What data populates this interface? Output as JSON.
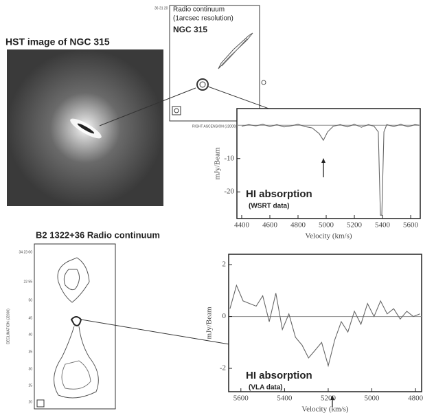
{
  "panels": {
    "hst": {
      "title": "HST image of NGC 315"
    },
    "radio": {
      "lines": [
        "Radio continuum",
        "(1arcsec resolution)"
      ],
      "name": "NGC 315",
      "ytick": "36 31 20",
      "xlabel": "RIGHT ASCENSION (J2000)"
    },
    "b2": {
      "title": "B2 1322+36 Radio continuum",
      "ylabel": "DECLINATION (J2000)",
      "yticks": [
        "34 23 00",
        "22 55",
        "50",
        "45",
        "40",
        "35",
        "30",
        "25",
        "20"
      ]
    }
  },
  "chart_data": [
    {
      "type": "line",
      "color": "#666666",
      "xlabel": "Velocity (km/s)",
      "ylabel": "mJy/Beam",
      "annotations": [
        "HI absorption",
        "(WSRT data)"
      ],
      "x": [
        4400,
        4450,
        4500,
        4550,
        4600,
        4650,
        4700,
        4750,
        4800,
        4850,
        4900,
        4950,
        4980,
        5010,
        5050,
        5100,
        5150,
        5200,
        5250,
        5300,
        5340,
        5370,
        5385,
        5395,
        5410,
        5430,
        5480,
        5530,
        5580,
        5630,
        5660
      ],
      "values": [
        -0.3,
        0.2,
        -0.2,
        0.3,
        -0.4,
        0.2,
        -0.5,
        -0.2,
        0.3,
        -0.4,
        -0.8,
        -2.5,
        -4.5,
        -2.0,
        -0.3,
        0.2,
        -0.5,
        0.3,
        -0.6,
        0.2,
        -0.3,
        -2,
        -27,
        -27,
        -2,
        0.2,
        -0.4,
        0.3,
        -0.5,
        0.2,
        0.0
      ],
      "xlim": [
        4366,
        5668
      ],
      "xticks": [
        4400,
        4600,
        4800,
        5000,
        5200,
        5400,
        5600
      ],
      "ylim": [
        -28,
        5
      ],
      "yticks": [
        -10,
        -20
      ]
    },
    {
      "type": "line",
      "color": "#666666",
      "xlabel": "Velocity (km/s)",
      "ylabel": "mJy/Beam",
      "annotations": [
        "HI absorption",
        "(VLA data)"
      ],
      "x": [
        5650,
        5620,
        5590,
        5560,
        5530,
        5500,
        5470,
        5440,
        5410,
        5380,
        5350,
        5320,
        5290,
        5260,
        5230,
        5200,
        5170,
        5140,
        5110,
        5080,
        5050,
        5020,
        4990,
        4960,
        4930,
        4900,
        4870,
        4840,
        4810,
        4780
      ],
      "values": [
        0.3,
        1.2,
        0.6,
        0.5,
        0.4,
        0.8,
        -0.2,
        0.9,
        -0.5,
        0.1,
        -0.8,
        -1.1,
        -1.6,
        -1.3,
        -1.0,
        -1.9,
        -0.9,
        -0.2,
        -0.6,
        0.2,
        -0.3,
        0.5,
        0.0,
        0.6,
        0.1,
        0.3,
        -0.1,
        0.2,
        0.0,
        0.1
      ],
      "xlim": [
        5656,
        4772
      ],
      "xticks": [
        5600,
        5400,
        5200,
        5000,
        4800
      ],
      "ylim": [
        -2.9,
        2.4
      ],
      "yticks": [
        2,
        0,
        -2
      ]
    }
  ]
}
